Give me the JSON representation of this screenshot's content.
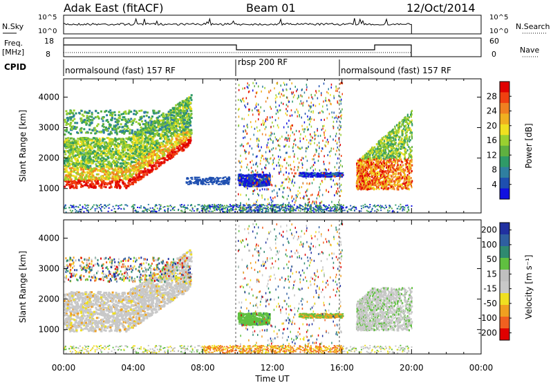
{
  "header": {
    "title": "Adak East (fitACF)",
    "beam": "Beam 01",
    "date": "12/Oct/2014"
  },
  "panels": {
    "nsky": {
      "label": "N.Sky",
      "left_ticks": [
        "10^5",
        "10^0"
      ],
      "right_ticks": [
        "10^5",
        "10^0"
      ],
      "right_label": "N.Search"
    },
    "freq": {
      "label": "Freq.",
      "unit": "[MHz]",
      "left_ticks": [
        "18",
        "8"
      ],
      "right_ticks": [
        "60",
        "0"
      ],
      "right_label": "Nave"
    },
    "cpid": {
      "label": "CPID",
      "segments": [
        {
          "start_hour": 0.0,
          "end_hour": 10.0,
          "text": "normalsound (fast) 157 RF"
        },
        {
          "start_hour": 10.0,
          "end_hour": 16.0,
          "text": "rbsp 200 RF"
        },
        {
          "start_hour": 16.0,
          "end_hour": 20.0,
          "text": "normalsound (fast) 157 RF"
        }
      ]
    }
  },
  "colors": {
    "power": [
      "#1010e0",
      "#1e4fb0",
      "#2f7fa0",
      "#2f9a68",
      "#5fb040",
      "#9ad030",
      "#f0e020",
      "#f0b020",
      "#f08020",
      "#f04010",
      "#e00000"
    ],
    "velocity": [
      "#2030a0",
      "#2f5fa0",
      "#2f8a70",
      "#60c040",
      "#bfbfbf",
      "#c8c8c8",
      "#f0e020",
      "#f0a020",
      "#f06020",
      "#e00000"
    ]
  },
  "chart_data": [
    {
      "type": "heatmap",
      "title": "Power",
      "xlabel": "Time UT",
      "ylabel": "Slant Range [km]",
      "xlim_hours": [
        0,
        24
      ],
      "ylim_km": [
        200,
        4600
      ],
      "x_ticks": [
        "00:00",
        "04:00",
        "08:00",
        "12:00",
        "16:00",
        "20:00",
        "00:00"
      ],
      "y_ticks": [
        1000,
        2000,
        3000,
        4000
      ],
      "colorbar": {
        "label": "Power [dB]",
        "range": [
          0,
          32
        ],
        "ticks": [
          4,
          8,
          12,
          16,
          20,
          24,
          28
        ]
      },
      "echo_regions": [
        {
          "t0": 0.0,
          "t1": 5.0,
          "r0": 900,
          "r1": 1500,
          "level": "28"
        },
        {
          "t0": 0.0,
          "t1": 7.3,
          "r0": 1500,
          "r1": 2700,
          "level": "16-24"
        },
        {
          "t0": 0.0,
          "t1": 7.2,
          "r0": 2700,
          "r1": 3600,
          "level": "8-12"
        },
        {
          "t0": 7.0,
          "t1": 9.5,
          "r0": 1100,
          "r1": 1400,
          "level": "4-8"
        },
        {
          "t0": 10.0,
          "t1": 11.8,
          "r0": 1100,
          "r1": 1500,
          "level": "4"
        },
        {
          "t0": 13.5,
          "t1": 16.0,
          "r0": 1400,
          "r1": 1550,
          "level": "4"
        },
        {
          "t0": 16.8,
          "t1": 20.0,
          "r0": 1000,
          "r1": 3600,
          "level": "12-24"
        }
      ]
    },
    {
      "type": "heatmap",
      "title": "Velocity",
      "xlabel": "Time UT",
      "ylabel": "Slant Range [km]",
      "xlim_hours": [
        0,
        24
      ],
      "ylim_km": [
        200,
        4600
      ],
      "x_ticks": [
        "00:00",
        "04:00",
        "08:00",
        "12:00",
        "16:00",
        "20:00",
        "00:00"
      ],
      "y_ticks": [
        1000,
        2000,
        3000,
        4000
      ],
      "colorbar": {
        "label": "Velocity [m s⁻¹]",
        "ticks": [
          200,
          100,
          50,
          15,
          -15,
          -50,
          -100,
          -200
        ]
      },
      "echo_regions": [
        {
          "t0": 0.0,
          "t1": 7.3,
          "r0": 900,
          "r1": 2700,
          "level": "-15..15"
        },
        {
          "t0": 10.0,
          "t1": 11.8,
          "r0": 1100,
          "r1": 1500,
          "level": "15..50"
        },
        {
          "t0": 13.5,
          "t1": 16.0,
          "r0": 1400,
          "r1": 1550,
          "level": "15..50"
        },
        {
          "t0": 16.8,
          "t1": 20.0,
          "r0": 1100,
          "r1": 2300,
          "level": "-15..15"
        }
      ]
    }
  ]
}
